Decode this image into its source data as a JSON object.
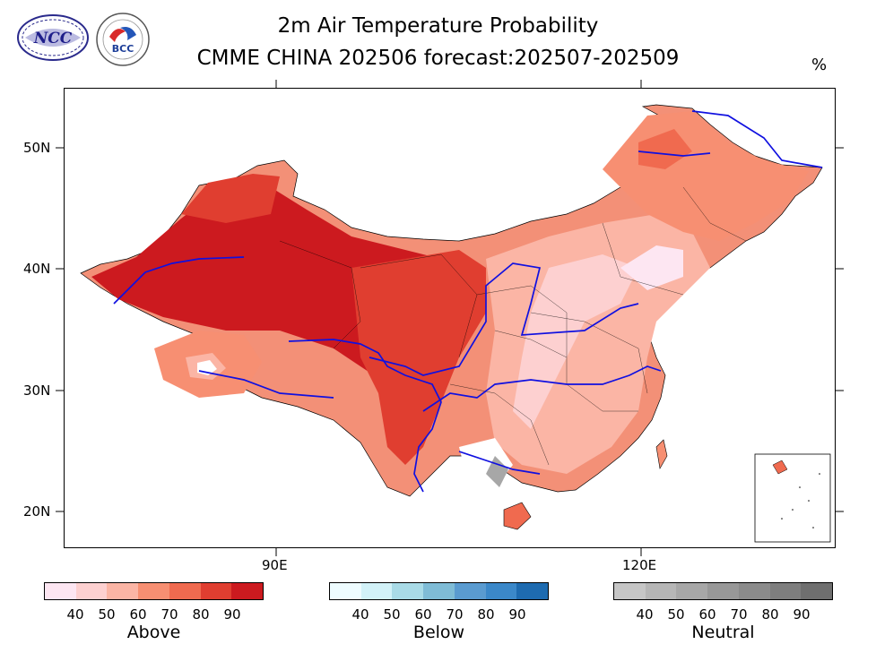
{
  "header": {
    "title_line1": "2m Air Temperature Probability",
    "title_line2": "CMME CHINA 202506 forecast:202507-202509",
    "units": "%"
  },
  "logos": [
    {
      "name": "ncc-logo",
      "text": "NCC"
    },
    {
      "name": "bcc-logo",
      "text": "BCC"
    }
  ],
  "map": {
    "lat_labels": [
      "50N",
      "40N",
      "30N",
      "20N"
    ],
    "lon_labels": [
      "90E",
      "120E"
    ]
  },
  "legends": [
    {
      "title": "Above",
      "levels": [
        "40",
        "50",
        "60",
        "70",
        "80",
        "90"
      ],
      "colors": [
        "#fde6f2",
        "#fdd0d0",
        "#fbb5a5",
        "#f78f72",
        "#f06a4f",
        "#e03e30",
        "#cc1a1f"
      ]
    },
    {
      "title": "Below",
      "levels": [
        "40",
        "50",
        "60",
        "70",
        "80",
        "90"
      ],
      "colors": [
        "#eefcff",
        "#d2f2f8",
        "#a9dbe7",
        "#7fbcd6",
        "#5a9bd0",
        "#3b88c9",
        "#1e6bb0"
      ]
    },
    {
      "title": "Neutral",
      "levels": [
        "40",
        "50",
        "60",
        "70",
        "80",
        "90"
      ],
      "colors": [
        "#c6c6c6",
        "#b6b6b6",
        "#a7a7a7",
        "#989898",
        "#8b8b8b",
        "#7e7e7e",
        "#6f6f6f"
      ]
    }
  ]
}
